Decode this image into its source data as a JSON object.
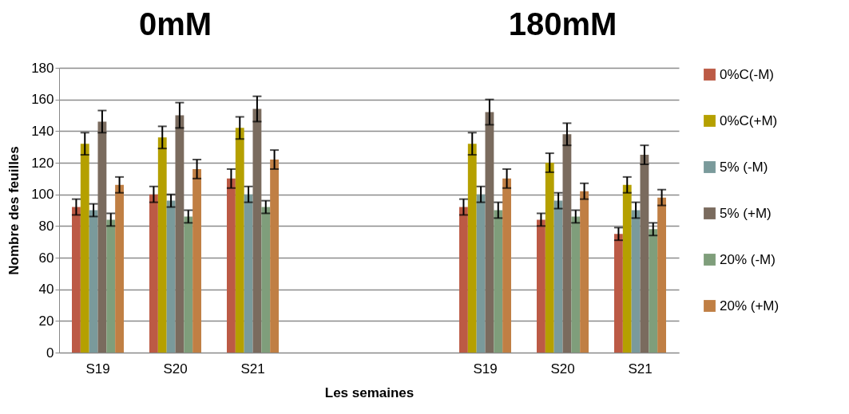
{
  "chart_data": {
    "type": "bar",
    "categories": [
      "S19",
      "S20",
      "S21",
      null,
      null,
      "S19",
      "S20",
      "S21"
    ],
    "xlabel": "Les  semaines",
    "ylabel": "Nombre des feuilles",
    "annotations": [
      "0mM",
      "180mM"
    ],
    "ylim": [
      0,
      180
    ],
    "yticks": [
      0,
      20,
      40,
      60,
      80,
      100,
      120,
      140,
      160,
      180
    ],
    "grid": "y",
    "legend": "right",
    "series": [
      {
        "name": "0%C(-M)",
        "color": "#bc5a45",
        "values": [
          92,
          100,
          110,
          null,
          null,
          92,
          84,
          75
        ],
        "errors": [
          5,
          5,
          6,
          null,
          null,
          5,
          4,
          4
        ]
      },
      {
        "name": "0%C(+M)",
        "color": "#b5a000",
        "values": [
          132,
          136,
          142,
          null,
          null,
          132,
          120,
          106
        ],
        "errors": [
          7,
          7,
          7,
          null,
          null,
          7,
          6,
          5
        ]
      },
      {
        "name": "5% (-M)",
        "color": "#7a9a9b",
        "values": [
          90,
          96,
          100,
          null,
          null,
          100,
          96,
          90
        ],
        "errors": [
          4,
          4,
          5,
          null,
          null,
          5,
          5,
          5
        ]
      },
      {
        "name": "5% (+M)",
        "color": "#7a6b5e",
        "values": [
          146,
          150,
          154,
          null,
          null,
          152,
          138,
          125
        ],
        "errors": [
          7,
          8,
          8,
          null,
          null,
          8,
          7,
          6
        ]
      },
      {
        "name": "20% (-M)",
        "color": "#7f9e7b",
        "values": [
          84,
          86,
          92,
          null,
          null,
          90,
          86,
          78
        ],
        "errors": [
          4,
          4,
          4,
          null,
          null,
          5,
          4,
          4
        ]
      },
      {
        "name": "20% (+M)",
        "color": "#c07f44",
        "values": [
          106,
          116,
          122,
          null,
          null,
          110,
          102,
          98
        ],
        "errors": [
          5,
          6,
          6,
          null,
          null,
          6,
          5,
          5
        ]
      }
    ]
  }
}
